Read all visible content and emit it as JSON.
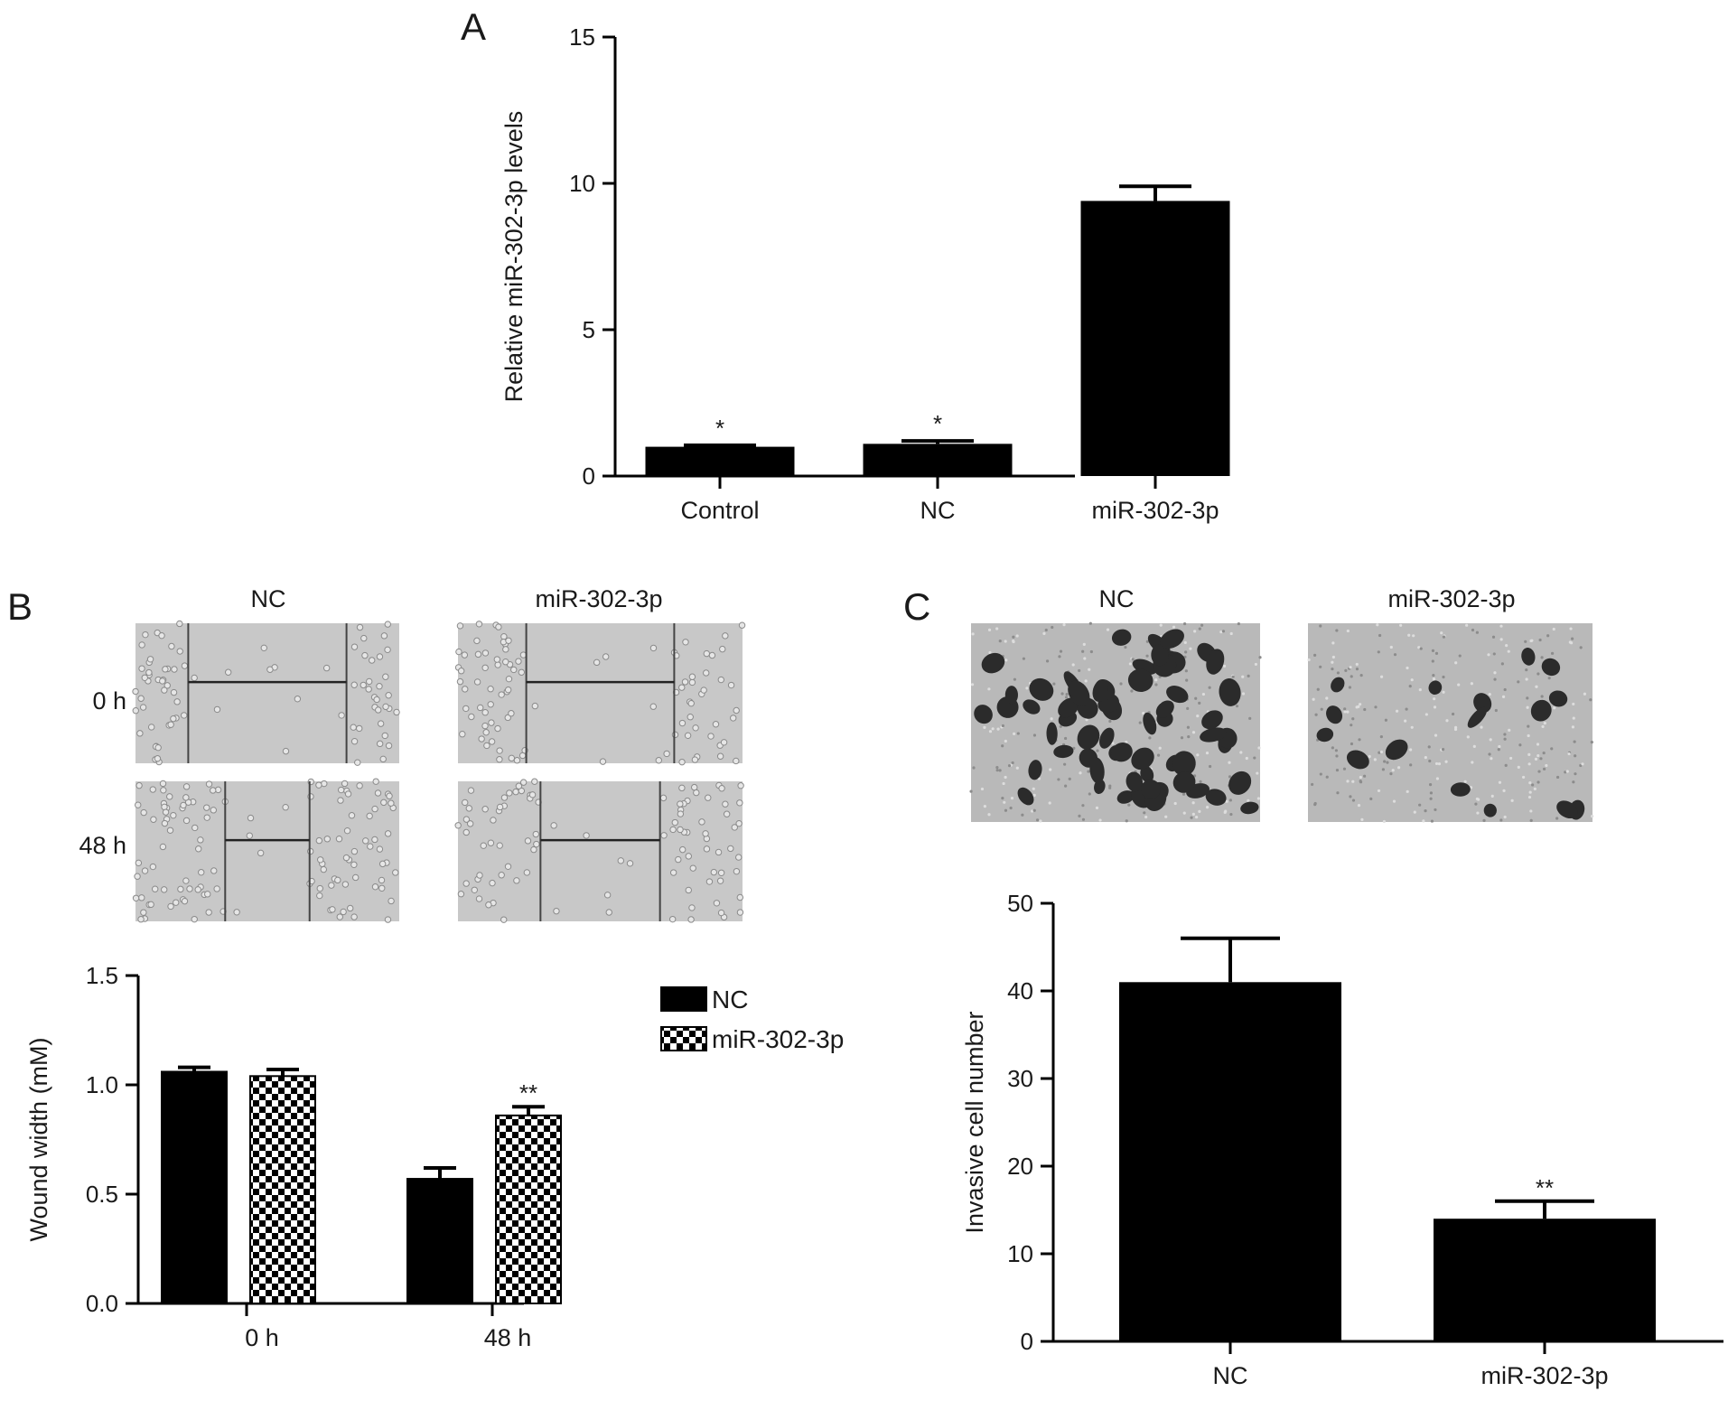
{
  "figure": {
    "panel_labels": {
      "A": "A",
      "B": "B",
      "C": "C"
    },
    "colors": {
      "bar": "#000000",
      "axis": "#000000",
      "micro_bg": "#bdbdbd",
      "stain": "#2b2b2b"
    }
  },
  "panel_b_images": {
    "col_labels": [
      "NC",
      "miR-302-3p"
    ],
    "row_labels": [
      "0 h",
      "48 h"
    ],
    "wound_gap_fraction": [
      [
        0.6,
        0.52
      ],
      [
        0.32,
        0.42
      ]
    ]
  },
  "panel_c_images": {
    "col_labels": [
      "NC",
      "miR-302-3p"
    ],
    "stained_density": [
      "high",
      "low"
    ]
  },
  "chart_data": [
    {
      "id": "A",
      "type": "bar",
      "categories": [
        "Control",
        "NC",
        "miR-302-3p"
      ],
      "values": [
        1.0,
        1.1,
        9.4
      ],
      "errors": [
        0.05,
        0.1,
        0.5
      ],
      "annotations": [
        "*",
        "*",
        ""
      ],
      "ylabel": "Relative miR-302-3p levels",
      "xlabel": "",
      "ylim": [
        0,
        15
      ],
      "yticks": [
        "0",
        "5",
        "10",
        "15"
      ],
      "grid": false
    },
    {
      "id": "B",
      "type": "bar",
      "categories": [
        "0 h",
        "48 h"
      ],
      "series": [
        {
          "name": "NC",
          "values": [
            1.06,
            0.57
          ],
          "errors": [
            0.02,
            0.05
          ],
          "pattern": "solid",
          "annotations": [
            "",
            ""
          ]
        },
        {
          "name": "miR-302-3p",
          "values": [
            1.04,
            0.86
          ],
          "errors": [
            0.03,
            0.04
          ],
          "pattern": "checkered",
          "annotations": [
            "",
            "**"
          ]
        }
      ],
      "ylabel": "Wound width (mM)",
      "xlabel": "",
      "ylim": [
        0,
        1.5
      ],
      "yticks": [
        "0.0",
        "0.5",
        "1.0",
        "1.5"
      ],
      "legend": "right",
      "grid": false
    },
    {
      "id": "C",
      "type": "bar",
      "categories": [
        "NC",
        "miR-302-3p"
      ],
      "values": [
        41,
        14
      ],
      "errors": [
        5,
        2
      ],
      "annotations": [
        "",
        "**"
      ],
      "ylabel": "Invasive cell number",
      "xlabel": "",
      "ylim": [
        0,
        50
      ],
      "yticks": [
        "0",
        "10",
        "20",
        "30",
        "40",
        "50"
      ],
      "grid": false
    }
  ]
}
